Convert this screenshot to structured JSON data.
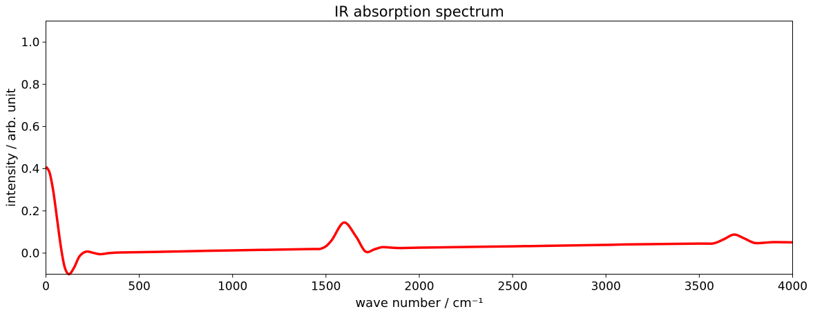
{
  "chart_data": {
    "type": "line",
    "title": "IR absorption spectrum",
    "xlabel": "wave number / cm⁻¹",
    "ylabel": "intensity / arb. unit",
    "xlim": [
      0,
      4000
    ],
    "ylim": [
      -0.1,
      1.1
    ],
    "xticks": [
      0,
      500,
      1000,
      1500,
      2000,
      2500,
      3000,
      3500,
      4000
    ],
    "xtick_labels": [
      "0",
      "500",
      "1000",
      "1500",
      "2000",
      "2500",
      "3000",
      "3500",
      "4000"
    ],
    "yticks": [
      0.0,
      0.2,
      0.4,
      0.6,
      0.8,
      1.0
    ],
    "ytick_labels": [
      "0.0",
      "0.2",
      "0.4",
      "0.6",
      "0.8",
      "1.0"
    ],
    "grid": false,
    "series": [
      {
        "color": "#ff0000",
        "x": [
          0,
          20,
          40,
          60,
          80,
          100,
          123,
          150,
          180,
          215,
          250,
          290,
          340,
          400,
          600,
          1000,
          1400,
          1480,
          1530,
          1596,
          1660,
          1711,
          1760,
          1800,
          1850,
          1900,
          2000,
          2500,
          3000,
          3100,
          3500,
          3575,
          3630,
          3686,
          3740,
          3797,
          3860,
          3900,
          4000
        ],
        "y": [
          0.41,
          0.38,
          0.29,
          0.16,
          0.03,
          -0.065,
          -0.1,
          -0.07,
          -0.015,
          0.007,
          0.002,
          -0.005,
          0.0,
          0.003,
          0.006,
          0.013,
          0.019,
          0.023,
          0.06,
          0.145,
          0.08,
          0.008,
          0.018,
          0.028,
          0.026,
          0.024,
          0.026,
          0.032,
          0.039,
          0.041,
          0.045,
          0.046,
          0.065,
          0.088,
          0.07,
          0.048,
          0.05,
          0.052,
          0.051
        ]
      }
    ]
  }
}
